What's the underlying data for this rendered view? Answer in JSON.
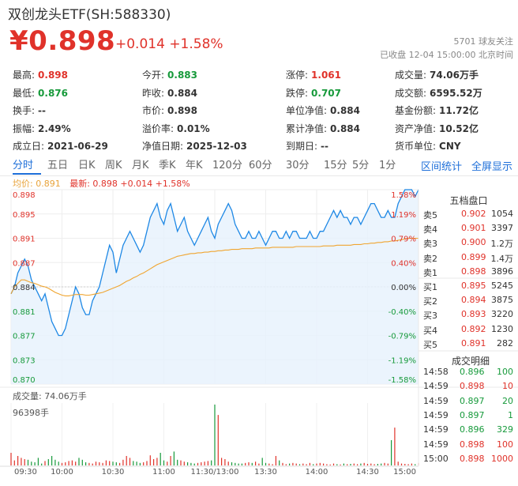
{
  "header": {
    "title": "双创龙头ETF(SH:588330)",
    "price": "¥0.898",
    "change": "+0.014 +1.58%",
    "followers": "5701 球友关注",
    "status": "已收盘 12-04 15:00:00 北京时间"
  },
  "quote_rows": [
    [
      {
        "label": "最高:",
        "value": "0.898",
        "color": "red"
      },
      {
        "label": "今开:",
        "value": "0.883",
        "color": "green"
      },
      {
        "label": "涨停:",
        "value": "1.061",
        "color": "red"
      },
      {
        "label": "成交量:",
        "value": "74.06万手",
        "color": ""
      }
    ],
    [
      {
        "label": "最低:",
        "value": "0.876",
        "color": "green"
      },
      {
        "label": "昨收:",
        "value": "0.884",
        "color": ""
      },
      {
        "label": "跌停:",
        "value": "0.707",
        "color": "green"
      },
      {
        "label": "成交额:",
        "value": "6595.52万",
        "color": ""
      }
    ],
    [
      {
        "label": "换手:",
        "value": "--",
        "color": ""
      },
      {
        "label": "市价:",
        "value": "0.898",
        "color": ""
      },
      {
        "label": "单位净值:",
        "value": "0.884",
        "color": ""
      },
      {
        "label": "基金份额:",
        "value": "11.72亿",
        "color": ""
      }
    ],
    [
      {
        "label": "振幅:",
        "value": "2.49%",
        "color": ""
      },
      {
        "label": "溢价率:",
        "value": "0.01%",
        "color": ""
      },
      {
        "label": "累计净值:",
        "value": "0.884",
        "color": ""
      },
      {
        "label": "资产净值:",
        "value": "10.52亿",
        "color": ""
      }
    ],
    [
      {
        "label": "成立日:",
        "value": "2021-06-29",
        "color": ""
      },
      {
        "label": "净值日期:",
        "value": "2025-12-03",
        "color": ""
      },
      {
        "label": "到期日:",
        "value": "--",
        "color": ""
      },
      {
        "label": "货币单位:",
        "value": "CNY",
        "color": ""
      }
    ]
  ],
  "tabs": [
    "分时",
    "五日",
    "日K",
    "周K",
    "月K",
    "季K",
    "年K",
    "120分",
    "60分",
    "30分",
    "15分",
    "5分",
    "1分"
  ],
  "active_tab": "分时",
  "links": {
    "interval_stats": "区间统计",
    "fullscreen": "全屏显示"
  },
  "legend": {
    "avg": "均价: 0.891",
    "latest": "最新: 0.898 +0.014 +1.58%"
  },
  "orderbook": {
    "title": "五档盘口",
    "rows": [
      {
        "label": "卖5",
        "price": "0.902",
        "vol": "1054",
        "color": "red"
      },
      {
        "label": "卖4",
        "price": "0.901",
        "vol": "3397",
        "color": "red"
      },
      {
        "label": "卖3",
        "price": "0.900",
        "vol": "1.2万",
        "color": "red"
      },
      {
        "label": "卖2",
        "price": "0.899",
        "vol": "1.4万",
        "color": "red"
      },
      {
        "label": "卖1",
        "price": "0.898",
        "vol": "3896",
        "color": "red"
      },
      {
        "label": "买1",
        "price": "0.895",
        "vol": "5245",
        "color": "red"
      },
      {
        "label": "买2",
        "price": "0.894",
        "vol": "3875",
        "color": "red"
      },
      {
        "label": "买3",
        "price": "0.893",
        "vol": "3220",
        "color": "red"
      },
      {
        "label": "买4",
        "price": "0.892",
        "vol": "1230",
        "color": "red"
      },
      {
        "label": "买5",
        "price": "0.891",
        "vol": "282",
        "color": "red"
      }
    ]
  },
  "trades": {
    "title": "成交明细",
    "rows": [
      {
        "time": "14:58",
        "price": "0.896",
        "vol": "100",
        "color": "green"
      },
      {
        "time": "14:59",
        "price": "0.898",
        "vol": "10",
        "color": "red"
      },
      {
        "time": "14:59",
        "price": "0.897",
        "vol": "20",
        "color": "green"
      },
      {
        "time": "14:59",
        "price": "0.897",
        "vol": "1",
        "color": "green"
      },
      {
        "time": "14:59",
        "price": "0.896",
        "vol": "329",
        "color": "green"
      },
      {
        "time": "14:59",
        "price": "0.898",
        "vol": "100",
        "color": "red"
      },
      {
        "time": "15:00",
        "price": "0.898",
        "vol": "1000",
        "color": "red"
      }
    ]
  },
  "volume": {
    "label": "成交量: 74.06万手",
    "max_label": "96398手"
  },
  "chart_data": {
    "type": "line",
    "prev_close": 0.884,
    "ylim": [
      0.87,
      0.898
    ],
    "y_ticks_left": [
      "0.898",
      "0.895",
      "0.891",
      "0.887",
      "0.884",
      "0.881",
      "0.877",
      "0.873",
      "0.870"
    ],
    "y_ticks_right": [
      "1.58%",
      "1.19%",
      "0.79%",
      "0.40%",
      "0.00%",
      "-0.40%",
      "-0.79%",
      "-1.19%",
      "-1.58%"
    ],
    "x_ticks": [
      "09:30",
      "10:00",
      "10:30",
      "11:00",
      "11:30/13:00",
      "13:30",
      "14:00",
      "14:30",
      "15:00"
    ],
    "series": [
      {
        "values": [
          0.883,
          0.884,
          0.886,
          0.887,
          0.888,
          0.887,
          0.885,
          0.884,
          0.883,
          0.882,
          0.883,
          0.881,
          0.879,
          0.878,
          0.877,
          0.877,
          0.878,
          0.88,
          0.882,
          0.884,
          0.883,
          0.881,
          0.88,
          0.88,
          0.882,
          0.883,
          0.884,
          0.886,
          0.888,
          0.89,
          0.889,
          0.886,
          0.888,
          0.89,
          0.891,
          0.892,
          0.891,
          0.89,
          0.889,
          0.89,
          0.892,
          0.894,
          0.895,
          0.896,
          0.894,
          0.893,
          0.895,
          0.896,
          0.894,
          0.892,
          0.893,
          0.894,
          0.892,
          0.891,
          0.89,
          0.891,
          0.892,
          0.893,
          0.894,
          0.892,
          0.891,
          0.893,
          0.894,
          0.895,
          0.896,
          0.895,
          0.893,
          0.892,
          0.891,
          0.891,
          0.892,
          0.891,
          0.891,
          0.892,
          0.891,
          0.89,
          0.891,
          0.892,
          0.892,
          0.891,
          0.891,
          0.892,
          0.891,
          0.892,
          0.892,
          0.891,
          0.891,
          0.891,
          0.892,
          0.891,
          0.891,
          0.892,
          0.892,
          0.893,
          0.894,
          0.895,
          0.894,
          0.895,
          0.894,
          0.894,
          0.893,
          0.894,
          0.894,
          0.893,
          0.894,
          0.895,
          0.896,
          0.896,
          0.895,
          0.894,
          0.894,
          0.895,
          0.894,
          0.894,
          0.896,
          0.897,
          0.898,
          0.898,
          0.898,
          0.897,
          0.898
        ]
      },
      {
        "values": [
          0.883,
          0.884,
          0.8845,
          0.885,
          0.885,
          0.8848,
          0.8846,
          0.8845,
          0.8843,
          0.8841,
          0.884,
          0.8838,
          0.8835,
          0.8832,
          0.883,
          0.8828,
          0.8827,
          0.8827,
          0.8828,
          0.8829,
          0.8829,
          0.8829,
          0.8828,
          0.8828,
          0.8829,
          0.883,
          0.8831,
          0.8832,
          0.8834,
          0.8836,
          0.8838,
          0.884,
          0.8842,
          0.8845,
          0.8848,
          0.885,
          0.8853,
          0.8855,
          0.8858,
          0.886,
          0.8863,
          0.8866,
          0.8869,
          0.8872,
          0.8874,
          0.8876,
          0.8878,
          0.888,
          0.8882,
          0.8884,
          0.8885,
          0.8886,
          0.8887,
          0.8888,
          0.8888,
          0.8889,
          0.8889,
          0.889,
          0.889,
          0.8891,
          0.8891,
          0.8892,
          0.8892,
          0.8893,
          0.8893,
          0.8894,
          0.8894,
          0.8894,
          0.8895,
          0.8895,
          0.8895,
          0.8895,
          0.8896,
          0.8896,
          0.8896,
          0.8896,
          0.8896,
          0.8897,
          0.8897,
          0.8897,
          0.8897,
          0.8897,
          0.8897,
          0.8897,
          0.8898,
          0.8898,
          0.8898,
          0.8898,
          0.8898,
          0.8898,
          0.8898,
          0.8898,
          0.8899,
          0.8899,
          0.8899,
          0.8899,
          0.89,
          0.89,
          0.89,
          0.89,
          0.89,
          0.8901,
          0.8901,
          0.8901,
          0.8902,
          0.8902,
          0.8903,
          0.8903,
          0.8904,
          0.8904,
          0.8905,
          0.8905,
          0.8906,
          0.8906,
          0.8907,
          0.8908,
          0.8909,
          0.891,
          0.891,
          0.891,
          0.891
        ]
      }
    ],
    "volume_max": 96398,
    "volume": [
      20000,
      8000,
      15000,
      12000,
      10000,
      9000,
      6000,
      5000,
      12000,
      3000,
      7000,
      10000,
      15000,
      9000,
      6000,
      4000,
      5000,
      7000,
      8000,
      6000,
      12000,
      9000,
      5000,
      4000,
      3000,
      6000,
      5000,
      4000,
      8000,
      7000,
      6000,
      5000,
      4000,
      9000,
      15000,
      12000,
      7000,
      6000,
      4000,
      5000,
      7000,
      16000,
      10000,
      12000,
      20000,
      8000,
      6000,
      15000,
      22000,
      9000,
      8000,
      6000,
      5000,
      4000,
      3000,
      4000,
      5000,
      6000,
      7000,
      8000,
      96398,
      80000,
      12000,
      10000,
      6000,
      5000,
      4000,
      3000,
      3000,
      4000,
      5000,
      4000,
      6000,
      3000,
      12000,
      4000,
      3000,
      2000,
      15000,
      8000,
      4000,
      2000,
      3000,
      4000,
      3000,
      2000,
      3000,
      2000,
      4000,
      2000,
      3000,
      4000,
      3000,
      2000,
      1500,
      3000,
      2000,
      1500,
      3000,
      2000,
      2500,
      3000,
      2000,
      3000,
      4000,
      2500,
      3000,
      2000,
      2500,
      3000,
      4000,
      3000,
      40000,
      60000,
      6000,
      3000,
      2500,
      2000,
      3000,
      2000,
      4000
    ]
  }
}
